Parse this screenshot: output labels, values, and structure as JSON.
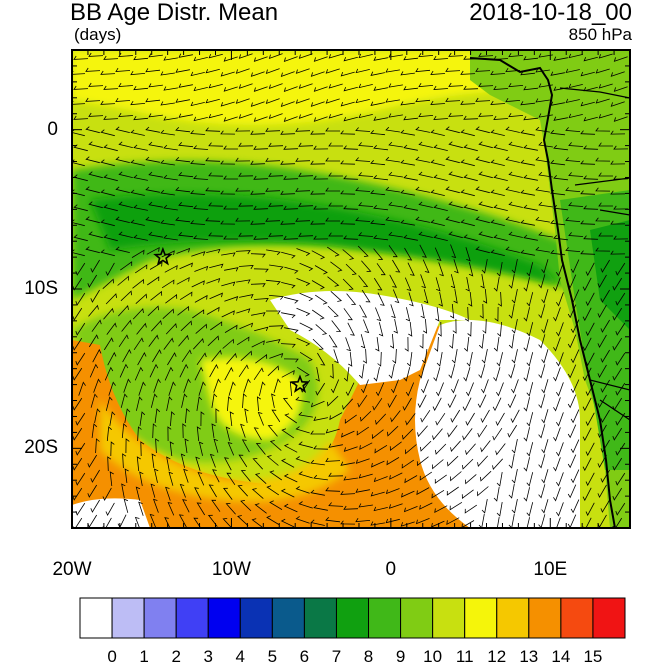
{
  "header": {
    "title": "BB Age Distr. Mean",
    "units": "(days)",
    "date": "2018-10-18_00",
    "level": "850 hPa"
  },
  "axes": {
    "lon_labels": [
      "20W",
      "10W",
      "0",
      "10E"
    ],
    "lon_values": [
      -20,
      -10,
      0,
      10
    ],
    "lat_labels": [
      "0",
      "10S",
      "20S"
    ],
    "lat_values": [
      0,
      -10,
      -20
    ],
    "lon_range": [
      -20,
      15
    ],
    "lat_range": [
      -25,
      5
    ]
  },
  "markers": [
    {
      "type": "star",
      "lon": -14.3,
      "lat": -8.0
    },
    {
      "type": "star",
      "lon": -5.7,
      "lat": -16.0
    }
  ],
  "colorbar": {
    "labels": [
      "0",
      "1",
      "2",
      "3",
      "4",
      "5",
      "6",
      "7",
      "8",
      "9",
      "10",
      "11",
      "12",
      "13",
      "14",
      "15"
    ],
    "colors": [
      "#ffffff",
      "#bdbdf5",
      "#8080f0",
      "#4040f5",
      "#0000f0",
      "#0a32b4",
      "#0a5a8c",
      "#0a7846",
      "#10a010",
      "#40b818",
      "#80cc14",
      "#c8e010",
      "#f5f50a",
      "#f5c800",
      "#f59000",
      "#f54a10",
      "#f01414"
    ]
  },
  "colors": {
    "ocean_base": "#c8e010",
    "wind_barb": "#000000",
    "coastline": "#000000"
  }
}
